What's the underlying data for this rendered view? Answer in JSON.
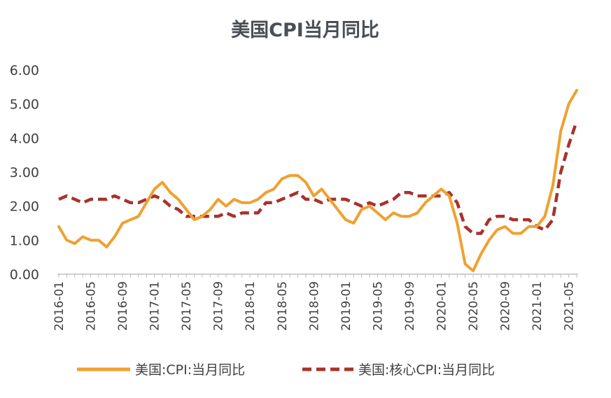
{
  "colors": {
    "cpi": "#F0A030",
    "core": "#A8322D",
    "axis": "#BFBFBF",
    "text": "#404040",
    "title": "#4A4F55"
  },
  "chart_data": {
    "type": "line",
    "title": "美国CPI当月同比",
    "xlabel": "",
    "ylabel": "",
    "ylim": [
      0,
      6
    ],
    "yticks": [
      "0.00",
      "1.00",
      "2.00",
      "3.00",
      "4.00",
      "5.00",
      "6.00"
    ],
    "grid": false,
    "legend_position": "bottom",
    "x": [
      "2016-01",
      "2016-02",
      "2016-03",
      "2016-04",
      "2016-05",
      "2016-06",
      "2016-07",
      "2016-08",
      "2016-09",
      "2016-10",
      "2016-11",
      "2016-12",
      "2017-01",
      "2017-02",
      "2017-03",
      "2017-04",
      "2017-05",
      "2017-06",
      "2017-07",
      "2017-08",
      "2017-09",
      "2017-10",
      "2017-11",
      "2017-12",
      "2018-01",
      "2018-02",
      "2018-03",
      "2018-04",
      "2018-05",
      "2018-06",
      "2018-07",
      "2018-08",
      "2018-09",
      "2018-10",
      "2018-11",
      "2018-12",
      "2019-01",
      "2019-02",
      "2019-03",
      "2019-04",
      "2019-05",
      "2019-06",
      "2019-07",
      "2019-08",
      "2019-09",
      "2019-10",
      "2019-11",
      "2019-12",
      "2020-01",
      "2020-02",
      "2020-03",
      "2020-04",
      "2020-05",
      "2020-06",
      "2020-07",
      "2020-08",
      "2020-09",
      "2020-10",
      "2020-11",
      "2020-12",
      "2021-01",
      "2021-02",
      "2021-03",
      "2021-04",
      "2021-05",
      "2021-06"
    ],
    "xtick_labels": [
      "2016-01",
      "2016-05",
      "2016-09",
      "2017-01",
      "2017-05",
      "2017-09",
      "2018-01",
      "2018-05",
      "2018-09",
      "2019-01",
      "2019-05",
      "2019-09",
      "2020-01",
      "2020-05",
      "2020-09",
      "2021-01",
      "2021-05"
    ],
    "series": [
      {
        "name": "美国:CPI:当月同比",
        "style": "solid",
        "values": [
          1.4,
          1.0,
          0.9,
          1.1,
          1.0,
          1.0,
          0.8,
          1.1,
          1.5,
          1.6,
          1.7,
          2.1,
          2.5,
          2.7,
          2.4,
          2.2,
          1.9,
          1.6,
          1.7,
          1.9,
          2.2,
          2.0,
          2.2,
          2.1,
          2.1,
          2.2,
          2.4,
          2.5,
          2.8,
          2.9,
          2.9,
          2.7,
          2.3,
          2.5,
          2.2,
          1.9,
          1.6,
          1.5,
          1.9,
          2.0,
          1.8,
          1.6,
          1.8,
          1.7,
          1.7,
          1.8,
          2.1,
          2.3,
          2.5,
          2.3,
          1.5,
          0.3,
          0.1,
          0.6,
          1.0,
          1.3,
          1.4,
          1.2,
          1.2,
          1.4,
          1.4,
          1.7,
          2.6,
          4.2,
          5.0,
          5.4
        ]
      },
      {
        "name": "美国:核心CPI:当月同比",
        "style": "dashed",
        "values": [
          2.2,
          2.3,
          2.2,
          2.1,
          2.2,
          2.2,
          2.2,
          2.3,
          2.2,
          2.1,
          2.1,
          2.2,
          2.3,
          2.2,
          2.0,
          1.9,
          1.7,
          1.7,
          1.7,
          1.7,
          1.7,
          1.8,
          1.7,
          1.8,
          1.8,
          1.8,
          2.1,
          2.1,
          2.2,
          2.3,
          2.4,
          2.2,
          2.2,
          2.1,
          2.2,
          2.2,
          2.2,
          2.1,
          2.0,
          2.1,
          2.0,
          2.1,
          2.2,
          2.4,
          2.4,
          2.3,
          2.3,
          2.3,
          2.3,
          2.4,
          2.1,
          1.4,
          1.2,
          1.2,
          1.6,
          1.7,
          1.7,
          1.6,
          1.6,
          1.6,
          1.4,
          1.3,
          1.6,
          3.0,
          3.8,
          4.5
        ]
      }
    ]
  }
}
